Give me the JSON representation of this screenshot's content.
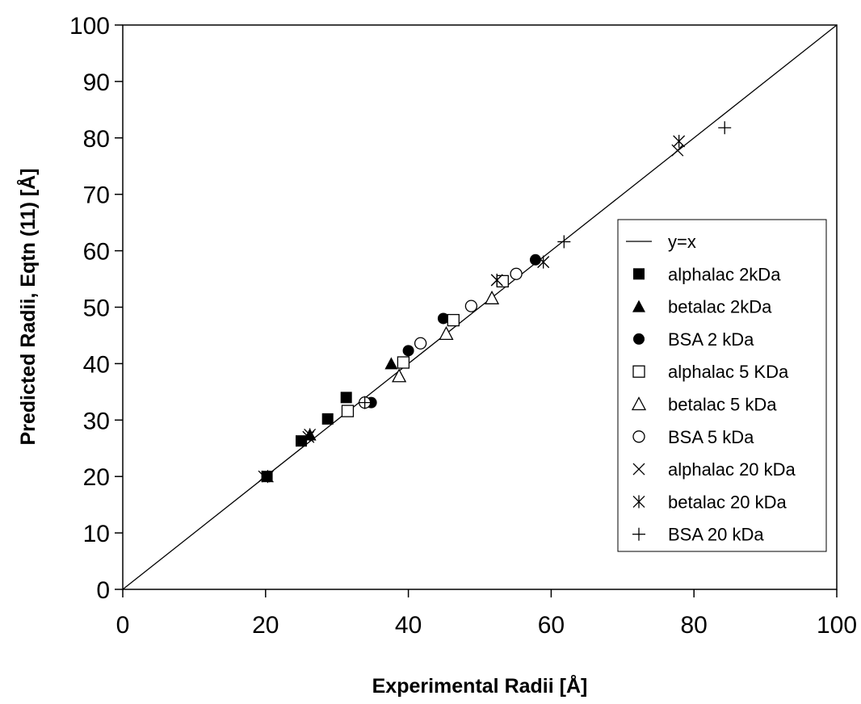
{
  "chart_data": {
    "type": "scatter",
    "title": "",
    "xlabel": "Experimental Radii [Å]",
    "ylabel": "Predicted Radii, Eqtn (11) [Å]",
    "xlim": [
      0,
      100
    ],
    "ylim": [
      0,
      100
    ],
    "xticks": [
      "0",
      "20",
      "40",
      "60",
      "80",
      "100"
    ],
    "yticks": [
      "0",
      "10",
      "20",
      "30",
      "40",
      "50",
      "60",
      "70",
      "80",
      "90",
      "100"
    ],
    "grid": false,
    "legend_position": "right",
    "line": {
      "name": "y=x",
      "x": [
        0,
        100
      ],
      "y": [
        0,
        100
      ]
    },
    "series": [
      {
        "name": "alphalac 2kDa",
        "marker": "square-filled",
        "x": [
          20.2,
          25.0,
          28.7,
          31.3
        ],
        "y": [
          20.0,
          26.3,
          30.2,
          34.0
        ]
      },
      {
        "name": "betalac 2kDa",
        "marker": "triangle-filled",
        "x": [
          26.2,
          37.6
        ],
        "y": [
          27.4,
          40.0
        ]
      },
      {
        "name": "BSA 2 kDa",
        "marker": "circle-filled",
        "x": [
          34.8,
          40.0,
          44.9,
          57.8
        ],
        "y": [
          33.1,
          42.3,
          48.0,
          58.4
        ]
      },
      {
        "name": "alphalac 5 KDa",
        "marker": "square-open",
        "x": [
          31.5,
          39.3,
          46.3,
          53.2
        ],
        "y": [
          31.6,
          40.2,
          47.7,
          54.6
        ]
      },
      {
        "name": "betalac 5 kDa",
        "marker": "triangle-open",
        "x": [
          38.7,
          45.3,
          51.7
        ],
        "y": [
          37.8,
          45.3,
          51.6
        ]
      },
      {
        "name": "BSA 5 kDa",
        "marker": "circle-open",
        "x": [
          33.9,
          41.7,
          48.8,
          55.1
        ],
        "y": [
          33.1,
          43.6,
          50.2,
          55.9
        ]
      },
      {
        "name": "alphalac 20 kDa",
        "marker": "x",
        "x": [
          19.8,
          26.0,
          52.4,
          58.9,
          77.7
        ],
        "y": [
          20.0,
          27.0,
          54.8,
          58.0,
          77.8
        ]
      },
      {
        "name": "betalac 20 kDa",
        "marker": "star",
        "x": [
          20.3,
          26.2,
          52.4,
          58.9,
          77.9
        ],
        "y": [
          20.0,
          27.4,
          54.8,
          58.0,
          79.4
        ]
      },
      {
        "name": "BSA 20 kDa",
        "marker": "plus",
        "x": [
          33.9,
          61.8,
          84.3
        ],
        "y": [
          33.1,
          61.6,
          81.8
        ]
      }
    ]
  }
}
